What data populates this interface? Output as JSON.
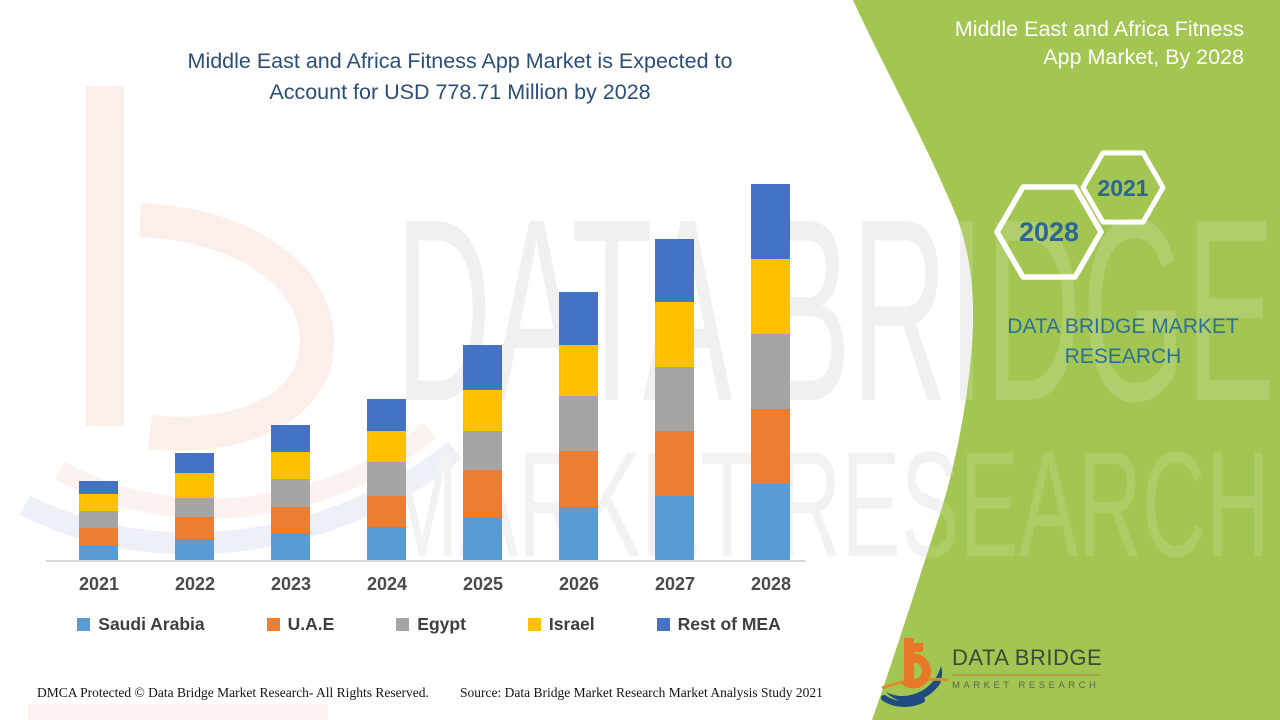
{
  "header": {
    "title_line1": "Middle East and Africa Fitness App Market is Expected to",
    "title_line2": "Account for USD 778.71 Million by 2028"
  },
  "side_panel": {
    "panel_title_line1": "Middle East and Africa Fitness",
    "panel_title_line2": "App Market, By 2028",
    "hexagon_large_year": "2028",
    "hexagon_small_year": "2021",
    "brand_line1": "DATA BRIDGE MARKET",
    "brand_line2": "RESEARCH"
  },
  "logo": {
    "name": "DATA BRIDGE",
    "subtitle": "MARKET RESEARCH"
  },
  "watermark": {
    "line1": "DATA BRIDGE",
    "line2": "MARKET RESEARCH"
  },
  "footer": {
    "dmca": "DMCA Protected © Data Bridge Market Research- All Rights Reserved.",
    "source": "Source: Data Bridge Market Research Market Analysis Study 2021"
  },
  "colors": {
    "title_blue": "#2B4E78",
    "panel_green": "#A3C653",
    "brand_teal": "#2B7295",
    "hexagon_year_blue": "#2A6795",
    "axis_line_gray": "#D9D9D9"
  },
  "chart_data": {
    "type": "bar",
    "stacked": true,
    "title": "Middle East and Africa Fitness App Market is Expected to Account for USD 778.71 Million by 2028",
    "unit": "USD Million",
    "values_estimated_from_pixels": true,
    "total_2028": 778.71,
    "categories": [
      "2021",
      "2022",
      "2023",
      "2024",
      "2025",
      "2026",
      "2027",
      "2028"
    ],
    "series": [
      {
        "name": "Saudi Arabia",
        "color": "#5B9BD5",
        "values": [
          31,
          43.5,
          56,
          68,
          89,
          110,
          132.5,
          157.5
        ]
      },
      {
        "name": "U.A.E",
        "color": "#ED7D31",
        "values": [
          35,
          45.5,
          54,
          64,
          97,
          116,
          134.5,
          155.3
        ]
      },
      {
        "name": "Egypt",
        "color": "#A5A5A5",
        "values": [
          35,
          39.5,
          58,
          70.5,
          81,
          114,
          132.5,
          155.3
        ]
      },
      {
        "name": "Israel",
        "color": "#FFC000",
        "values": [
          35,
          52,
          56,
          64,
          85,
          105.5,
          134.5,
          155.3
        ]
      },
      {
        "name": "Rest of MEA",
        "color": "#4472C4",
        "values": [
          27,
          41.5,
          56,
          66.5,
          93,
          110,
          130.5,
          155.4
        ]
      }
    ],
    "xlabel": "",
    "ylabel": "",
    "ylim": [
      0,
      800
    ],
    "grid": false,
    "legend_position": "bottom"
  }
}
